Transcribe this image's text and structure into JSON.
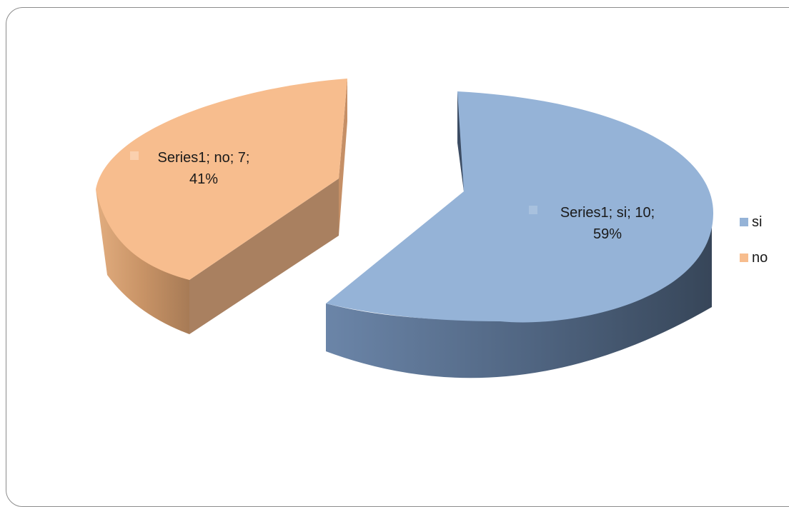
{
  "chart_data": {
    "type": "pie",
    "title": "",
    "series": [
      {
        "name": "Series1",
        "values": [
          10,
          7
        ]
      }
    ],
    "categories": [
      "si",
      "no"
    ],
    "slices": [
      {
        "category": "si",
        "value": 10,
        "percent": "59%",
        "color": "#95b3d7",
        "label_line1": "Series1; si; 10;",
        "label_line2": "59%"
      },
      {
        "category": "no",
        "value": 7,
        "percent": "41%",
        "color": "#f7bd8e",
        "label_line1": "Series1; no; 7;",
        "label_line2": "41%"
      }
    ],
    "legend": {
      "placement": "right",
      "entries": [
        {
          "label": "si",
          "color": "#95b3d7"
        },
        {
          "label": "no",
          "color": "#f7bd8e"
        }
      ]
    },
    "style": "3d-exploded"
  }
}
